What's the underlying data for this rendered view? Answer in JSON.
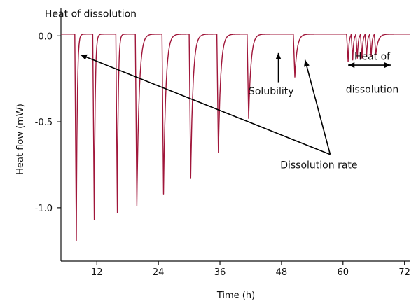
{
  "chart_data": {
    "type": "line",
    "title": "",
    "xlabel": "Time (h)",
    "ylabel": "Heat flow (mW)",
    "xlim": [
      5,
      73
    ],
    "ylim": [
      -1.31,
      0.16
    ],
    "x_ticks": [
      12,
      24,
      36,
      48,
      60,
      72
    ],
    "x_tick_labels": [
      "12",
      "24",
      "36",
      "48",
      "60",
      "72"
    ],
    "y_ticks": [
      0.0,
      -0.5,
      -1.0
    ],
    "y_tick_labels": [
      "0.0",
      "-0.5",
      "-1.0"
    ],
    "grid": false,
    "line_color": "#a0163a",
    "baseline": 0.01,
    "series": [
      {
        "name": "",
        "peaks": [
          {
            "x": 8.0,
            "y": -1.19
          },
          {
            "x": 11.5,
            "y": -1.07
          },
          {
            "x": 16.0,
            "y": -1.03
          },
          {
            "x": 19.8,
            "y": -0.99
          },
          {
            "x": 25.0,
            "y": -0.92
          },
          {
            "x": 30.3,
            "y": -0.83
          },
          {
            "x": 35.7,
            "y": -0.68
          },
          {
            "x": 41.6,
            "y": -0.48
          },
          {
            "x": 50.6,
            "y": -0.24
          },
          {
            "x": 61.0,
            "y": -0.15
          },
          {
            "x": 61.9,
            "y": -0.14
          },
          {
            "x": 62.8,
            "y": -0.13
          },
          {
            "x": 63.7,
            "y": -0.13
          },
          {
            "x": 64.6,
            "y": -0.12
          },
          {
            "x": 65.5,
            "y": -0.12
          },
          {
            "x": 66.4,
            "y": -0.11
          }
        ]
      }
    ],
    "annotations": [
      {
        "text": "Heat of dissolution",
        "x": 10.8,
        "y": 0.11
      },
      {
        "text": "Solubility",
        "x": 46.0,
        "y": -0.34
      },
      {
        "text": "Heat of",
        "x": 65.7,
        "y": -0.14
      },
      {
        "text": "dissolution",
        "x": 65.7,
        "y": -0.33
      },
      {
        "text": "Dissolution rate",
        "x": 55.3,
        "y": -0.77
      }
    ],
    "arrows": [
      {
        "from": [
          57.5,
          -0.69
        ],
        "to": [
          8.8,
          -0.11
        ],
        "head_end": true,
        "head_start": false
      },
      {
        "from": [
          57.5,
          -0.69
        ],
        "to": [
          52.6,
          -0.14
        ],
        "head_end": true,
        "head_start": false
      },
      {
        "from": [
          47.4,
          -0.27
        ],
        "to": [
          47.4,
          -0.1
        ],
        "head_end": true,
        "head_start": false
      },
      {
        "from": [
          61.0,
          -0.17
        ],
        "to": [
          69.3,
          -0.17
        ],
        "head_end": true,
        "head_start": true
      }
    ]
  }
}
